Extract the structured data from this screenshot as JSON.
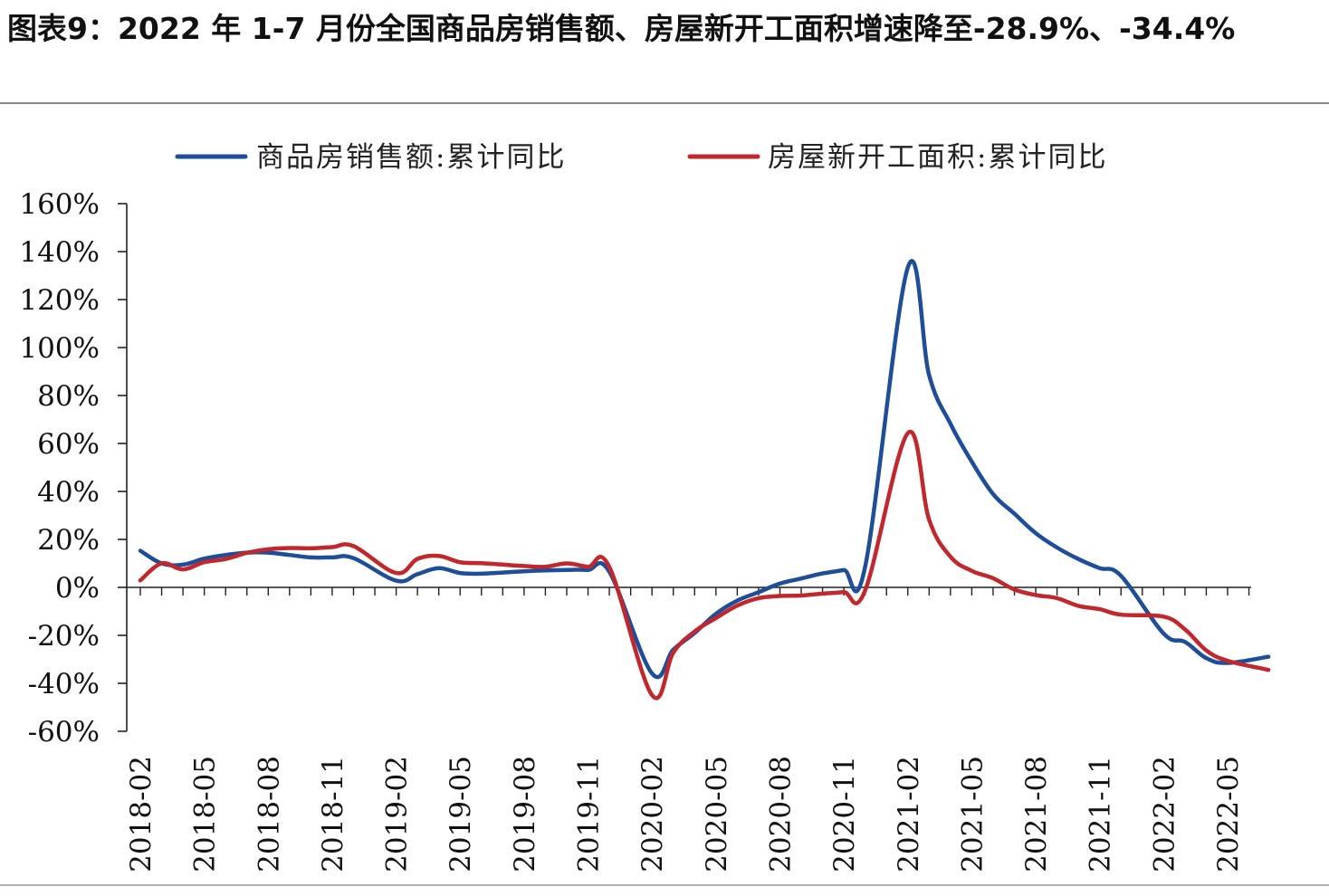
{
  "title": "图表9：2022 年 1-7 月份全国商品房销售额、房屋新开工面积增速降至-28.9%、-34.4%",
  "chart_data": {
    "type": "line",
    "title": "图表9：2022 年 1-7 月份全国商品房销售额、房屋新开工面积增速降至-28.9%、-34.4%",
    "xlabel": "",
    "ylabel": "",
    "ylim": [
      -60,
      160
    ],
    "yticks": [
      "160%",
      "140%",
      "120%",
      "100%",
      "80%",
      "60%",
      "40%",
      "20%",
      "0%",
      "-20%",
      "-40%",
      "-60%"
    ],
    "ytick_values": [
      160,
      140,
      120,
      100,
      80,
      60,
      40,
      20,
      0,
      -20,
      -40,
      -60
    ],
    "x_tick_labels": [
      "2018-02",
      "2018-05",
      "2018-08",
      "2018-11",
      "2019-02",
      "2019-05",
      "2019-08",
      "2019-11",
      "2020-02",
      "2020-05",
      "2020-08",
      "2020-11",
      "2021-02",
      "2021-05",
      "2021-08",
      "2021-11",
      "2022-02",
      "2022-05"
    ],
    "legend_position": "top",
    "grid": false,
    "x": [
      "2018-02",
      "2018-03",
      "2018-04",
      "2018-05",
      "2018-06",
      "2018-07",
      "2018-08",
      "2018-09",
      "2018-10",
      "2018-11",
      "2018-12",
      "2019-02",
      "2019-03",
      "2019-04",
      "2019-05",
      "2019-06",
      "2019-07",
      "2019-08",
      "2019-09",
      "2019-10",
      "2019-11",
      "2019-12",
      "2020-02",
      "2020-03",
      "2020-04",
      "2020-05",
      "2020-06",
      "2020-07",
      "2020-08",
      "2020-09",
      "2020-10",
      "2020-11",
      "2020-12",
      "2021-02",
      "2021-03",
      "2021-04",
      "2021-05",
      "2021-06",
      "2021-07",
      "2021-08",
      "2021-09",
      "2021-10",
      "2021-11",
      "2021-12",
      "2022-02",
      "2022-03",
      "2022-04",
      "2022-05",
      "2022-06",
      "2022-07"
    ],
    "series": [
      {
        "name": "商品房销售额:累计同比",
        "color": "#1f4e99",
        "values": [
          15.3,
          10.0,
          9.5,
          12.0,
          13.5,
          14.5,
          14.5,
          13.5,
          12.5,
          12.5,
          12.2,
          2.8,
          5.5,
          8.0,
          6.0,
          5.7,
          6.2,
          6.7,
          7.1,
          7.3,
          7.3,
          6.5,
          -35.9,
          -26.0,
          -19.0,
          -11.0,
          -5.5,
          -2.0,
          1.6,
          3.7,
          5.8,
          7.2,
          8.7,
          133.4,
          88.5,
          68.2,
          52.4,
          38.9,
          30.7,
          22.6,
          16.6,
          11.8,
          8.0,
          4.8,
          -19.3,
          -22.7,
          -29.5,
          -31.5,
          -28.9,
          -28.9
        ]
      },
      {
        "name": "房屋新开工面积:累计同比",
        "color": "#c0282d",
        "values": [
          2.9,
          10.0,
          7.5,
          10.5,
          11.8,
          14.4,
          15.9,
          16.4,
          16.3,
          16.8,
          17.2,
          6.0,
          11.9,
          13.1,
          10.5,
          10.1,
          9.5,
          8.9,
          8.6,
          10.0,
          8.6,
          8.5,
          -44.9,
          -27.2,
          -18.4,
          -12.8,
          -7.6,
          -4.5,
          -3.6,
          -3.4,
          -2.6,
          -2.0,
          -1.2,
          64.3,
          28.2,
          12.8,
          6.9,
          3.8,
          -0.9,
          -3.2,
          -4.5,
          -7.7,
          -9.1,
          -11.4,
          -12.2,
          -17.5,
          -26.3,
          -30.6,
          -34.4,
          -34.4
        ]
      }
    ]
  }
}
